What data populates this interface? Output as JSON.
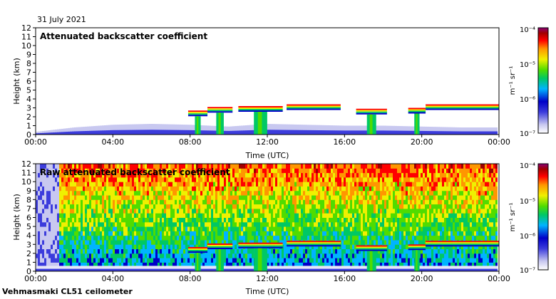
{
  "header": {
    "date": "31 July 2021"
  },
  "footer": {
    "instrument": "Vehmasmaki CL51 ceilometer"
  },
  "colorbar": {
    "unit_label": "m⁻¹ sr⁻¹",
    "ticks": [
      "10⁻⁴",
      "10⁻⁵",
      "10⁻⁶",
      "10⁻⁷"
    ],
    "scale": "log",
    "range": [
      1e-07,
      0.0001
    ],
    "colors": [
      "#ffffff",
      "#c8c8f0",
      "#3c3cdc",
      "#0000c8",
      "#00b4ff",
      "#00c864",
      "#50dc00",
      "#f0f000",
      "#ff9600",
      "#ff0000",
      "#a00000",
      "#8c0078"
    ]
  },
  "chart_data": [
    {
      "type": "heatmap",
      "title": "Attenuated backscatter coefficient",
      "xlabel": "Time (UTC)",
      "ylabel": "Height (km)",
      "x_ticks": [
        "00:00",
        "04:00",
        "08:00",
        "12:00",
        "16:00",
        "20:00",
        "00:00"
      ],
      "y_ticks": [
        "0",
        "1",
        "2",
        "3",
        "4",
        "5",
        "6",
        "7",
        "8",
        "9",
        "10",
        "11",
        "12"
      ],
      "xlim": [
        0,
        24
      ],
      "ylim": [
        0,
        12
      ],
      "cloud_layers": [
        {
          "start": 7.9,
          "end": 8.9,
          "base_km": 2.3
        },
        {
          "start": 8.9,
          "end": 10.2,
          "base_km": 2.7
        },
        {
          "start": 10.5,
          "end": 12.8,
          "base_km": 2.8
        },
        {
          "start": 13.0,
          "end": 15.8,
          "base_km": 3.0
        },
        {
          "start": 16.6,
          "end": 18.2,
          "base_km": 2.5
        },
        {
          "start": 19.3,
          "end": 20.2,
          "base_km": 2.6
        },
        {
          "start": 20.2,
          "end": 24.0,
          "base_km": 3.0
        }
      ],
      "boundary_layer": [
        [
          0,
          0.3
        ],
        [
          2,
          0.8
        ],
        [
          4,
          1.1
        ],
        [
          6,
          1.2
        ],
        [
          8,
          1.1
        ],
        [
          10,
          0.9
        ],
        [
          12,
          1.2
        ],
        [
          14,
          1.1
        ],
        [
          16,
          1.0
        ],
        [
          18,
          1.0
        ],
        [
          20,
          0.9
        ],
        [
          22,
          0.8
        ],
        [
          24,
          0.8
        ]
      ]
    },
    {
      "type": "heatmap",
      "title": "Raw attenuated backscatter coefficient",
      "xlabel": "Time (UTC)",
      "ylabel": "Height (km)",
      "x_ticks": [
        "00:00",
        "04:00",
        "08:00",
        "12:00",
        "16:00",
        "20:00",
        "00:00"
      ],
      "y_ticks": [
        "0",
        "1",
        "2",
        "3",
        "4",
        "5",
        "6",
        "7",
        "8",
        "9",
        "10",
        "11",
        "12"
      ],
      "xlim": [
        0,
        24
      ],
      "ylim": [
        0,
        12
      ],
      "cloud_layers": [
        {
          "start": 7.9,
          "end": 8.9,
          "base_km": 2.3
        },
        {
          "start": 8.9,
          "end": 10.2,
          "base_km": 2.7
        },
        {
          "start": 10.5,
          "end": 12.8,
          "base_km": 2.8
        },
        {
          "start": 13.0,
          "end": 15.8,
          "base_km": 3.0
        },
        {
          "start": 16.6,
          "end": 18.2,
          "base_km": 2.5
        },
        {
          "start": 19.3,
          "end": 20.2,
          "base_km": 2.6
        },
        {
          "start": 20.2,
          "end": 24.0,
          "base_km": 3.0
        }
      ]
    }
  ]
}
